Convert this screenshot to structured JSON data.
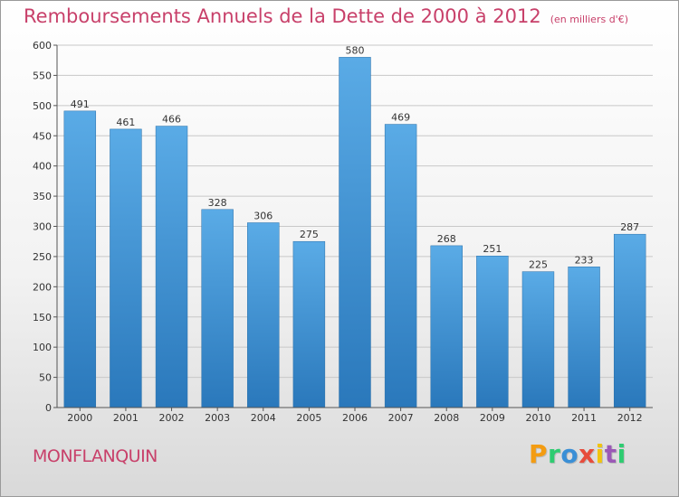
{
  "header": {
    "title": "Remboursements Annuels de la Dette de 2000 à 2012",
    "unit": "(en milliers d'€)"
  },
  "footer": {
    "city": "MONFLANQUIN",
    "brand_letters": [
      "P",
      "r",
      "o",
      "x",
      "i",
      "t",
      "i"
    ],
    "brand_colors": [
      "#f39c12",
      "#2ecc71",
      "#3a8fd6",
      "#e74c3c",
      "#f1c40f",
      "#9b59b6",
      "#2ecc71"
    ]
  },
  "chart_data": {
    "type": "bar",
    "categories": [
      "2000",
      "2001",
      "2002",
      "2003",
      "2004",
      "2005",
      "2006",
      "2007",
      "2008",
      "2009",
      "2010",
      "2011",
      "2012"
    ],
    "values": [
      491,
      461,
      466,
      328,
      306,
      275,
      580,
      469,
      268,
      251,
      225,
      233,
      287
    ],
    "ylim": [
      0,
      600
    ],
    "yticks": [
      0,
      50,
      100,
      150,
      200,
      250,
      300,
      350,
      400,
      450,
      500,
      550,
      600
    ],
    "grid": true,
    "bar_color": "#3a8fd6"
  }
}
